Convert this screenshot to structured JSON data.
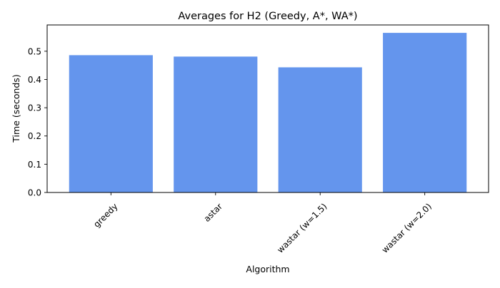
{
  "chart_data": {
    "type": "bar",
    "title": "Averages for H2 (Greedy, A*, WA*)",
    "xlabel": "Algorithm",
    "ylabel": "Time (seconds)",
    "categories": [
      "greedy",
      "astar",
      "wastar (w=1.5)",
      "wastar (w=2.0)"
    ],
    "values": [
      0.486,
      0.481,
      0.443,
      0.565
    ],
    "ylim": [
      0,
      0.593
    ],
    "yticks": [
      "0.0",
      "0.1",
      "0.2",
      "0.3",
      "0.4",
      "0.5"
    ],
    "grid": false,
    "bar_color": "#6495ED",
    "xtick_rotation": 45
  }
}
